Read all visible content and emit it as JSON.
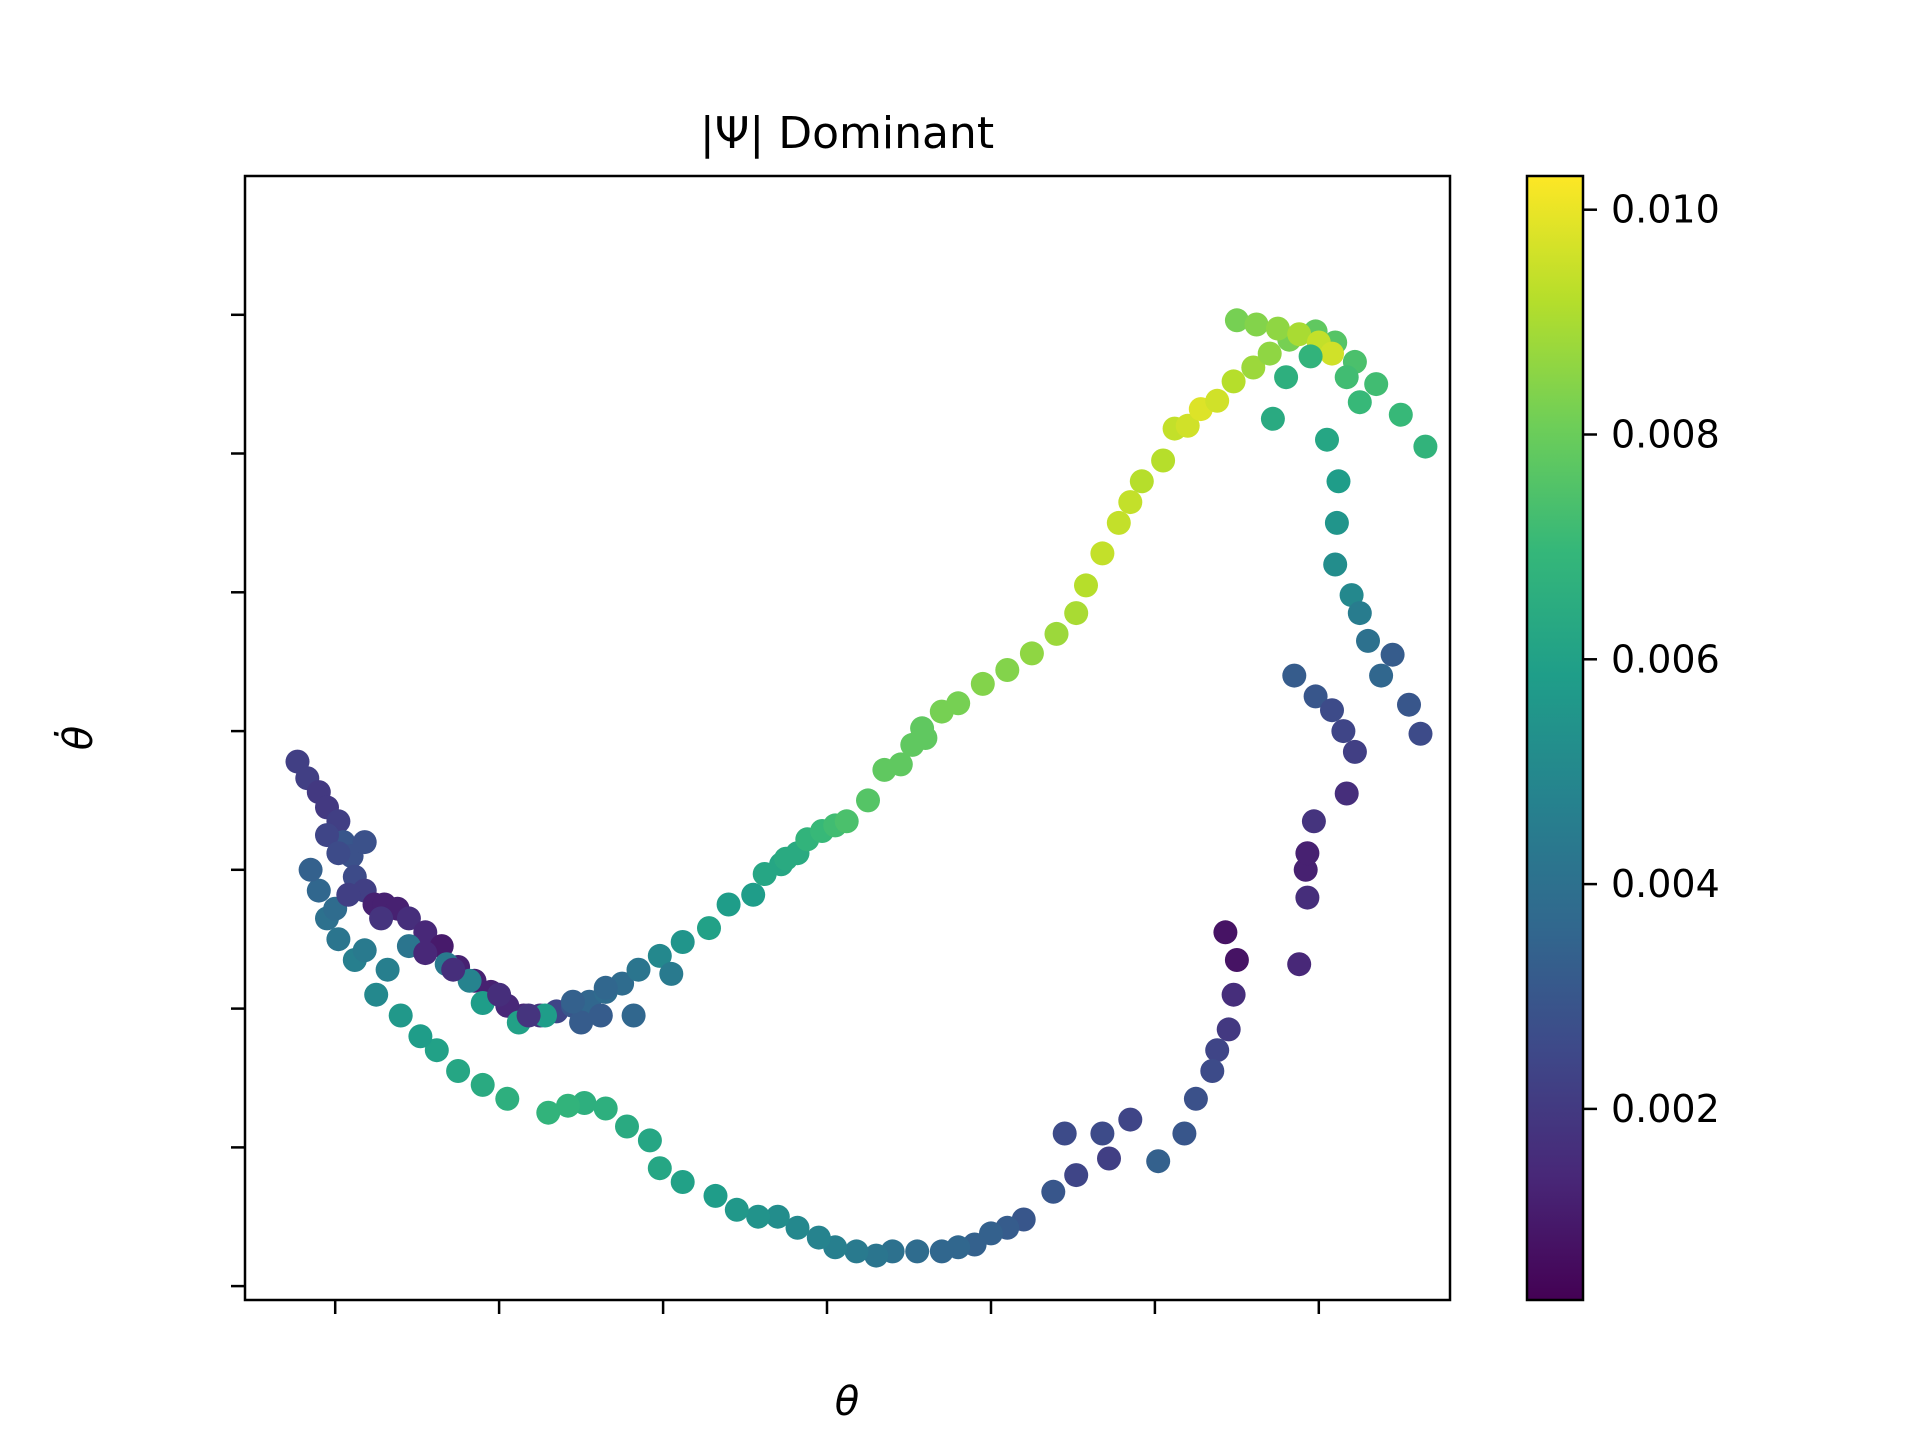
{
  "chart_data": {
    "type": "scatter",
    "title": "|Ψ| Dominant",
    "xlabel": "θ",
    "ylabel": "θ̇",
    "xlim": [
      -1.55,
      5.8
    ],
    "ylim": [
      -6.1,
      2.0
    ],
    "x_ticks": [
      -1,
      0,
      1,
      2,
      3,
      4,
      5
    ],
    "y_ticks": [
      -6,
      -5,
      -4,
      -3,
      -2,
      -1,
      0,
      1
    ],
    "tick_labels_shown": false,
    "grid": false,
    "legend": "none",
    "colormap": "viridis",
    "colorbar": {
      "range": [
        0.0003,
        0.0103
      ],
      "ticks": [
        0.002,
        0.004,
        0.006,
        0.008,
        0.01
      ],
      "tick_labels": [
        "0.002",
        "0.004",
        "0.006",
        "0.008",
        "0.010"
      ],
      "gradient_colors": [
        "#440154",
        "#482878",
        "#3e4989",
        "#31688e",
        "#26828e",
        "#1f9e89",
        "#35b779",
        "#6ece58",
        "#b5de2b",
        "#fde725"
      ]
    },
    "points": [
      [
        -1.23,
        -2.22,
        0.0022
      ],
      [
        -1.17,
        -2.34,
        0.0022
      ],
      [
        -1.1,
        -2.44,
        0.002
      ],
      [
        -1.05,
        -2.55,
        0.002
      ],
      [
        -0.98,
        -2.65,
        0.0022
      ],
      [
        -0.95,
        -2.8,
        0.003
      ],
      [
        -0.9,
        -2.9,
        0.0028
      ],
      [
        -0.88,
        -3.05,
        0.0026
      ],
      [
        -0.82,
        -3.15,
        0.0022
      ],
      [
        -0.76,
        -3.25,
        0.0012
      ],
      [
        -0.7,
        -3.25,
        0.0012
      ],
      [
        -0.62,
        -3.28,
        0.0012
      ],
      [
        -0.55,
        -3.35,
        0.0016
      ],
      [
        -0.45,
        -3.45,
        0.0014
      ],
      [
        -0.35,
        -3.55,
        0.001
      ],
      [
        -0.25,
        -3.7,
        0.0012
      ],
      [
        -0.15,
        -3.8,
        0.0012
      ],
      [
        -0.05,
        -3.88,
        0.0012
      ],
      [
        0.05,
        -3.98,
        0.0014
      ],
      [
        0.15,
        -4.05,
        0.0014
      ],
      [
        0.25,
        -4.05,
        0.0018
      ],
      [
        0.35,
        -4.02,
        0.0024
      ],
      [
        0.45,
        -3.98,
        0.003
      ],
      [
        0.55,
        -3.95,
        0.0036
      ],
      [
        0.65,
        -3.88,
        0.0038
      ],
      [
        0.75,
        -3.82,
        0.0038
      ],
      [
        0.85,
        -3.72,
        0.0042
      ],
      [
        0.98,
        -3.62,
        0.005
      ],
      [
        1.12,
        -3.52,
        0.0055
      ],
      [
        1.28,
        -3.42,
        0.006
      ],
      [
        1.4,
        -3.25,
        0.0058
      ],
      [
        1.55,
        -3.18,
        0.0058
      ],
      [
        1.62,
        -3.03,
        0.0062
      ],
      [
        1.72,
        -2.96,
        0.0062
      ],
      [
        1.82,
        -2.88,
        0.0064
      ],
      [
        1.88,
        -2.78,
        0.0068
      ],
      [
        1.97,
        -2.72,
        0.007
      ],
      [
        2.05,
        -2.68,
        0.0072
      ],
      [
        2.12,
        -2.65,
        0.0074
      ],
      [
        2.25,
        -2.5,
        0.0076
      ],
      [
        2.35,
        -2.28,
        0.0078
      ],
      [
        2.45,
        -2.24,
        0.0078
      ],
      [
        2.52,
        -2.1,
        0.0078
      ],
      [
        2.58,
        -1.98,
        0.0078
      ],
      [
        2.7,
        -1.86,
        0.0082
      ],
      [
        2.8,
        -1.8,
        0.0082
      ],
      [
        2.95,
        -1.66,
        0.0084
      ],
      [
        3.1,
        -1.56,
        0.0084
      ],
      [
        3.25,
        -1.44,
        0.0086
      ],
      [
        3.4,
        -1.3,
        0.0088
      ],
      [
        3.52,
        -1.15,
        0.009
      ],
      [
        3.58,
        -0.95,
        0.0092
      ],
      [
        3.68,
        -0.72,
        0.0094
      ],
      [
        3.78,
        -0.5,
        0.0094
      ],
      [
        3.85,
        -0.35,
        0.0094
      ],
      [
        3.92,
        -0.2,
        0.0092
      ],
      [
        4.05,
        -0.05,
        0.0092
      ],
      [
        4.12,
        0.18,
        0.0094
      ],
      [
        4.2,
        0.2,
        0.0096
      ],
      [
        4.28,
        0.32,
        0.0098
      ],
      [
        4.38,
        0.38,
        0.0096
      ],
      [
        4.48,
        0.52,
        0.0092
      ],
      [
        4.6,
        0.62,
        0.0088
      ],
      [
        4.7,
        0.72,
        0.0086
      ],
      [
        4.82,
        0.82,
        0.0082
      ],
      [
        4.98,
        0.88,
        0.0078
      ],
      [
        5.1,
        0.8,
        0.0076
      ],
      [
        5.22,
        0.66,
        0.0074
      ],
      [
        5.35,
        0.5,
        0.0072
      ],
      [
        5.5,
        0.28,
        0.007
      ],
      [
        5.65,
        0.05,
        0.0068
      ],
      [
        4.5,
        0.96,
        0.0082
      ],
      [
        4.62,
        0.93,
        0.0084
      ],
      [
        4.75,
        0.9,
        0.0086
      ],
      [
        4.88,
        0.86,
        0.009
      ],
      [
        5.0,
        0.8,
        0.0094
      ],
      [
        5.08,
        0.72,
        0.0096
      ],
      [
        5.17,
        0.55,
        0.0072
      ],
      [
        5.25,
        0.37,
        0.007
      ],
      [
        4.95,
        0.7,
        0.0068
      ],
      [
        4.8,
        0.55,
        0.0066
      ],
      [
        4.72,
        0.25,
        0.0064
      ],
      [
        5.05,
        0.1,
        0.0062
      ],
      [
        5.12,
        -0.2,
        0.0058
      ],
      [
        5.11,
        -0.5,
        0.0055
      ],
      [
        5.1,
        -0.8,
        0.0052
      ],
      [
        5.2,
        -1.02,
        0.005
      ],
      [
        5.25,
        -1.15,
        0.0045
      ],
      [
        5.3,
        -1.35,
        0.004
      ],
      [
        5.38,
        -1.6,
        0.0036
      ],
      [
        5.45,
        -1.45,
        0.0032
      ],
      [
        5.55,
        -1.81,
        0.003
      ],
      [
        5.62,
        -2.02,
        0.0026
      ],
      [
        4.85,
        -1.6,
        0.0032
      ],
      [
        4.98,
        -1.75,
        0.003
      ],
      [
        5.08,
        -1.85,
        0.0026
      ],
      [
        5.15,
        -2.0,
        0.0024
      ],
      [
        5.22,
        -2.15,
        0.0022
      ],
      [
        5.17,
        -2.45,
        0.0016
      ],
      [
        4.97,
        -2.65,
        0.0018
      ],
      [
        4.92,
        -3.0,
        0.0012
      ],
      [
        4.93,
        -2.88,
        0.0012
      ],
      [
        4.93,
        -3.2,
        0.0016
      ],
      [
        4.88,
        -3.68,
        0.0014
      ],
      [
        4.43,
        -3.45,
        0.0008
      ],
      [
        4.5,
        -3.65,
        0.0008
      ],
      [
        4.48,
        -3.9,
        0.0016
      ],
      [
        4.45,
        -4.15,
        0.002
      ],
      [
        4.38,
        -4.3,
        0.0024
      ],
      [
        4.35,
        -4.45,
        0.0026
      ],
      [
        4.25,
        -4.65,
        0.0028
      ],
      [
        4.18,
        -4.9,
        0.003
      ],
      [
        4.02,
        -5.1,
        0.0034
      ],
      [
        3.85,
        -4.8,
        0.0024
      ],
      [
        3.68,
        -4.9,
        0.0026
      ],
      [
        3.72,
        -5.08,
        0.0022
      ],
      [
        3.52,
        -5.2,
        0.0024
      ],
      [
        3.45,
        -4.9,
        0.0026
      ],
      [
        3.38,
        -5.32,
        0.003
      ],
      [
        3.2,
        -5.52,
        0.003
      ],
      [
        3.1,
        -5.58,
        0.0032
      ],
      [
        3.0,
        -5.62,
        0.0034
      ],
      [
        2.9,
        -5.7,
        0.0034
      ],
      [
        2.8,
        -5.72,
        0.0036
      ],
      [
        2.7,
        -5.75,
        0.0036
      ],
      [
        2.55,
        -5.75,
        0.0038
      ],
      [
        2.4,
        -5.75,
        0.004
      ],
      [
        2.3,
        -5.78,
        0.0042
      ],
      [
        2.18,
        -5.75,
        0.0044
      ],
      [
        2.05,
        -5.72,
        0.0046
      ],
      [
        1.95,
        -5.65,
        0.0048
      ],
      [
        1.82,
        -5.58,
        0.005
      ],
      [
        1.7,
        -5.5,
        0.0052
      ],
      [
        1.58,
        -5.5,
        0.0054
      ],
      [
        1.45,
        -5.45,
        0.0056
      ],
      [
        1.32,
        -5.35,
        0.0058
      ],
      [
        1.12,
        -5.25,
        0.006
      ],
      [
        0.98,
        -5.15,
        0.0062
      ],
      [
        0.92,
        -4.95,
        0.0062
      ],
      [
        0.78,
        -4.85,
        0.0064
      ],
      [
        0.65,
        -4.72,
        0.0066
      ],
      [
        0.52,
        -4.68,
        0.0066
      ],
      [
        0.42,
        -4.7,
        0.0068
      ],
      [
        0.3,
        -4.75,
        0.0068
      ],
      [
        0.05,
        -4.65,
        0.0066
      ],
      [
        -0.1,
        -4.55,
        0.0064
      ],
      [
        -0.25,
        -4.45,
        0.0062
      ],
      [
        -0.38,
        -4.3,
        0.006
      ],
      [
        -0.48,
        -4.2,
        0.0058
      ],
      [
        -0.6,
        -4.05,
        0.0056
      ],
      [
        -0.75,
        -3.9,
        0.005
      ],
      [
        -0.88,
        -3.65,
        0.0046
      ],
      [
        -0.98,
        -3.5,
        0.0042
      ],
      [
        -1.05,
        -3.35,
        0.004
      ],
      [
        -1.1,
        -3.15,
        0.0036
      ],
      [
        -1.15,
        -3.0,
        0.0034
      ],
      [
        -1.0,
        -3.28,
        0.0038
      ],
      [
        -0.82,
        -3.58,
        0.0044
      ],
      [
        -0.68,
        -3.72,
        0.0046
      ],
      [
        -0.55,
        -3.55,
        0.0042
      ],
      [
        -0.32,
        -3.68,
        0.0044
      ],
      [
        -0.18,
        -3.8,
        0.0048
      ],
      [
        -0.1,
        -3.96,
        0.0058
      ],
      [
        0.12,
        -4.1,
        0.006
      ],
      [
        0.28,
        -4.05,
        0.0058
      ],
      [
        0.5,
        -4.1,
        0.0032
      ],
      [
        0.65,
        -3.85,
        0.0036
      ],
      [
        0.45,
        -3.95,
        0.0034
      ],
      [
        0.62,
        -4.05,
        0.0032
      ],
      [
        0.82,
        -4.05,
        0.0036
      ],
      [
        1.05,
        -3.75,
        0.0044
      ],
      [
        -1.05,
        -2.75,
        0.0024
      ],
      [
        -0.98,
        -2.88,
        0.0026
      ],
      [
        -0.82,
        -2.8,
        0.0028
      ],
      [
        -0.92,
        -3.18,
        0.0022
      ],
      [
        -0.72,
        -3.35,
        0.0018
      ],
      [
        -0.45,
        -3.6,
        0.0014
      ],
      [
        -0.28,
        -3.72,
        0.0016
      ],
      [
        0.0,
        -3.9,
        0.0016
      ],
      [
        0.18,
        -4.05,
        0.0018
      ],
      [
        1.75,
        -2.92,
        0.0064
      ],
      [
        2.6,
        -2.05,
        0.0078
      ]
    ]
  }
}
